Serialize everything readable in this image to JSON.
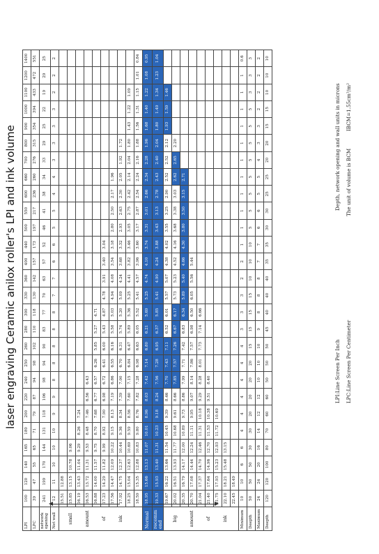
{
  "title": "laser engraving Ceramic anilox roller's LPI and ink volume",
  "labels": {
    "lpi": "LPI",
    "lpc": "LPC",
    "network_opening": "network opening",
    "net_wall": "Net wall",
    "normal": "Normal",
    "recommend": "recomm end",
    "minimum": "Minimum",
    "depth": "Deepth",
    "maximum": "Maximum",
    "small": [
      "small",
      "amount",
      "of",
      "ink"
    ],
    "big": [
      "big",
      "amount",
      "of",
      "ink"
    ]
  },
  "columns": {
    "lpi": [
      "100",
      "120",
      "140",
      "165",
      "180",
      "200",
      "220",
      "240",
      "250",
      "260",
      "280",
      "300",
      "330",
      "360",
      "400",
      "440",
      "500",
      "550",
      "600",
      "660",
      "700",
      "800",
      "900",
      "1000",
      "1100",
      "1200",
      "1400"
    ],
    "lpc": [
      "39",
      "47",
      "55",
      "65",
      "71",
      "79",
      "87",
      "94",
      "98",
      "102",
      "110",
      "118",
      "130",
      "142",
      "157",
      "173",
      "197",
      "217",
      "236",
      "260",
      "276",
      "315",
      "354",
      "394",
      "433",
      "472",
      "551"
    ],
    "network_opening": [
      "241",
      "199",
      "170",
      "144",
      "131",
      "118",
      "106",
      "98",
      "94",
      "90",
      "83",
      "77",
      "70",
      "63",
      "57",
      "52",
      "46",
      "41",
      "38",
      "34",
      "33",
      "29",
      "25",
      "22",
      "19",
      "29",
      "25"
    ],
    "net_wall": [
      "12",
      "11",
      "10",
      "10",
      "10",
      "9",
      "9",
      "8",
      "8",
      "8",
      "8",
      "8",
      "7",
      "7",
      "6",
      "6",
      "5",
      "5",
      "4",
      "4",
      "3",
      "3",
      "3",
      "3",
      "2",
      "2",
      "2"
    ]
  },
  "small_rows": [
    [
      "15.51",
      "12.88",
      "",
      "",
      "",
      "",
      "",
      "",
      "",
      "",
      "",
      "",
      "",
      "",
      "",
      "",
      "",
      "",
      "",
      "",
      "",
      "",
      "",
      "",
      "",
      "",
      ""
    ],
    [
      "15.85",
      "13.15",
      "10.78",
      "9.06",
      "",
      "",
      "",
      "",
      "",
      "",
      "",
      "",
      "",
      "",
      "",
      "",
      "",
      "",
      "",
      "",
      "",
      "",
      "",
      "",
      "",
      "",
      ""
    ],
    [
      "16.19",
      "13.43",
      "11.04",
      "9.29",
      "8.26",
      "7.24",
      "",
      "",
      "",
      "",
      "",
      "",
      "",
      "",
      "",
      "",
      "",
      "",
      "",
      "",
      "",
      "",
      "",
      "",
      "",
      "",
      ""
    ],
    [
      "16.53",
      "13.72",
      "11.31",
      "9.53",
      "8.48",
      "7.46",
      "6.56",
      "6.43",
      "",
      "",
      "",
      "",
      "",
      "",
      "",
      "",
      "",
      "",
      "",
      "",
      "",
      "",
      "",
      "",
      "",
      "",
      ""
    ],
    [
      "16.88",
      "14.00",
      "11.57",
      "9.75",
      "8.70",
      "7.68",
      "6.77",
      "6.57",
      "6.26",
      "5.85",
      "5.27",
      "4.71",
      "",
      "",
      "",
      "",
      "",
      "",
      "",
      "",
      "",
      "",
      "",
      "",
      "",
      "",
      ""
    ],
    [
      "17.23",
      "14.29",
      "11.82",
      "9.99",
      "8.92",
      "7.90",
      "6.98",
      "6.72",
      "6.41",
      "6.00",
      "5.43",
      "4.87",
      "4.78",
      "3.91",
      "3.40",
      "3.04",
      "",
      "",
      "",
      "",
      "",
      "",
      "",
      "",
      "",
      "",
      ""
    ],
    [
      "17.56",
      "14.47",
      "12.09",
      "10.22",
      "9.15",
      "8.13",
      "7.19",
      "6.86",
      "6.55",
      "6.16",
      "5.58",
      "5.03",
      "4.94",
      "4.08",
      "3.54",
      "3.18",
      "2.80",
      "2.50",
      "2.17",
      "1.96",
      "",
      "",
      "",
      "",
      "",
      "",
      ""
    ],
    [
      "17.92",
      "14.75",
      "12.37",
      "10.44",
      "9.36",
      "8.34",
      "7.39",
      "7.00",
      "6.70",
      "6.31",
      "5.74",
      "5.20",
      "5.09",
      "4.24",
      "3.68",
      "3.32",
      "2.93",
      "2.63",
      "2.30",
      "2.05",
      "1.92",
      "1.72",
      "",
      "",
      "",
      "",
      ""
    ],
    [
      "18.25",
      "15.04",
      "12.63",
      "10.69",
      "9.59",
      "8.56",
      "7.60",
      "7.15",
      "6.84",
      "6.47",
      "5.89",
      "5.36",
      "5.25",
      "4.41",
      "3.82",
      "3.46",
      "3.05",
      "2.75",
      "2.42",
      "2.14",
      "2.04",
      "1.80",
      "1.43",
      "1.22",
      "1.09",
      "",
      ""
    ],
    [
      "18.59",
      "15.35",
      "12.88",
      "10.83",
      "9.80",
      "8.76",
      "7.82",
      "7.28",
      "6.98",
      "6.63",
      "6.05",
      "5.52",
      "5.41",
      "4.57",
      "3.96",
      "3.60",
      "3.17",
      "2.87",
      "2.54",
      "2.24",
      "2.16",
      "1.88",
      "1.56",
      "1.31",
      "1.15",
      "1.01",
      "0.84"
    ]
  ],
  "normal_row": [
    "18.95",
    "15.66",
    "13.13",
    "11.07",
    "10.01",
    "8.96",
    "8.03",
    "7.42",
    "7.14",
    "6.80",
    "6.21",
    "5.69",
    "5.25",
    "4.74",
    "4.10",
    "3.74",
    "3.31",
    "3.01",
    "2.66",
    "2.34",
    "2.28",
    "1.96",
    "1.68",
    "1.40",
    "1.22",
    "1.08",
    "0.95"
  ],
  "recommend_row": [
    "19.33",
    "15.93",
    "13.40",
    "11.31",
    "10.23",
    "9.18",
    "8.24",
    "7.56",
    "7.28",
    "6.95",
    "6.37",
    "5.85",
    "5.41",
    "4.90",
    "4.24",
    "3.88",
    "3.43",
    "3.13",
    "2.78",
    "2.43",
    "2.40",
    "2.04",
    "1.80",
    "1.49",
    "1.34",
    "1.23",
    "1.04"
  ],
  "big_rows": [
    [
      "19.67",
      "16.22",
      "13.66",
      "11.54",
      "10.45",
      "9.39",
      "8.46",
      "7.70",
      "7.43",
      "7.11",
      "6.52",
      "6.01",
      "5.57",
      "5.07",
      "4.38",
      "4.02",
      "3.55",
      "3.25",
      "2.90",
      "2.52",
      "2.52",
      "2.12",
      "1.93",
      "1.59",
      "1.46",
      "",
      ""
    ],
    [
      "20.02",
      "16.51",
      "13.93",
      "11.77",
      "10.68",
      "9.61",
      "8.66",
      "7.85",
      "7.57",
      "7.26",
      "6.67",
      "6.17",
      "5.73",
      "5.23",
      "4.52",
      "4.16",
      "3.68",
      "3.38",
      "3.03",
      "2.62",
      "2.65",
      "2.20",
      "",
      "",
      "",
      "",
      ""
    ],
    [
      "20.35",
      "16.79",
      "14.17",
      "12.00",
      "10.89",
      "9.73",
      "8.86",
      "7.99",
      "7.71",
      "7.42",
      "6.83",
      "6.34",
      "5.89",
      "5.40",
      "4.66",
      "4.30",
      "3.80",
      "3.50",
      "3.15",
      "2.71",
      "",
      "",
      "",
      "",
      "",
      "",
      ""
    ],
    [
      "20.70",
      "17.08",
      "14.44",
      "12.24",
      "11.11",
      "9.95",
      "9.07",
      "8.14",
      "7.86",
      "7.57",
      "6.98",
      "6.50",
      "6.05",
      "5.56",
      "5.44",
      "",
      "",
      "",
      "",
      "",
      "",
      "",
      "",
      "",
      "",
      "",
      ""
    ],
    [
      "21.04",
      "17.37",
      "14.70",
      "12.46",
      "11.31",
      "10.18",
      "9.29",
      "8.28",
      "8.01",
      "7.73",
      "7.14",
      "6.66",
      "",
      "",
      "",
      "",
      "",
      "",
      "",
      "",
      "",
      "",
      "",
      "",
      "",
      "",
      ""
    ],
    [
      "21.40",
      "17.64",
      "14.96",
      "12.70",
      "11.53",
      "10.38",
      "9.51",
      "8.40",
      "",
      "",
      "",
      "",
      "",
      "",
      "",
      "",
      "",
      "",
      "",
      "",
      "",
      "",
      "",
      "",
      "",
      "",
      ""
    ],
    [
      "21.75",
      "17.93",
      "15.23",
      "12.93",
      "11.72",
      "10.69",
      "",
      "",
      "",
      "",
      "",
      "",
      "",
      "",
      "",
      "",
      "",
      "",
      "",
      "",
      "",
      "",
      "",
      "",
      "",
      "",
      ""
    ],
    [
      "22.10",
      "18.21",
      "15.48",
      "13.15",
      "",
      "",
      "",
      "",
      "",
      "",
      "",
      "",
      "",
      "",
      "",
      "",
      "",
      "",
      "",
      "",
      "",
      "",
      "",
      "",
      "",
      "",
      ""
    ],
    [
      "22.45",
      "18.49",
      "",
      "",
      "",
      "",
      "",
      "",
      "",
      "",
      "",
      "",
      "",
      "",
      "",
      "",
      "",
      "",
      "",
      "",
      "",
      "",
      "",
      "",
      "",
      "",
      ""
    ]
  ],
  "minimum_row": [
    "10",
    "10",
    "6",
    "6",
    "4",
    "4",
    "4",
    "4",
    "4",
    "4",
    "3",
    "3",
    "3",
    "2",
    "2",
    "1",
    "1",
    "1",
    "1",
    "1",
    "1",
    "1",
    "1",
    "1",
    "1",
    "1",
    "0.6"
  ],
  "min_depth_row": [
    "50",
    "50",
    "50",
    "30",
    "30",
    "20",
    "20",
    "20",
    "20",
    "15",
    "15",
    "15",
    "15",
    "10",
    "10",
    "10",
    "5",
    "5",
    "5",
    "5",
    "5",
    "5",
    "5",
    "5",
    "3",
    "3",
    "3"
  ],
  "maximum_row": [
    "24",
    "24",
    "20",
    "16",
    "14",
    "12",
    "12",
    "10",
    "10",
    "10",
    "9",
    "8",
    "8",
    "8",
    "7",
    "7",
    "6",
    "6",
    "5",
    "5",
    "4",
    "3",
    "3",
    "2",
    "2",
    "2",
    "2"
  ],
  "max_depth_row": [
    "120",
    "120",
    "100",
    "80",
    "70",
    "60",
    "60",
    "50",
    "50",
    "50",
    "45",
    "40",
    "40",
    "40",
    "35",
    "35",
    "30",
    "30",
    "25",
    "25",
    "20",
    "20",
    "15",
    "15",
    "10",
    "10",
    "10"
  ],
  "highlight": {
    "blue": "#2b66b8",
    "normal_from": 9,
    "recommend_from": 15,
    "big_row0_from": 20,
    "big_row1_from": 18,
    "big_row2_from": 16,
    "big_row0_to": 24,
    "big_row1_to": 21,
    "big_row2_to": 19,
    "big_row1_first": 7,
    "big_row2_first": 12,
    "big_row0_first": 8
  },
  "footer": {
    "lpi_def": "LPI:Line Screen Per Inch",
    "lpc_def": "LPC:Line Screen Per Centimeter",
    "depth_def": "Depth, network opening  and wall units in microns",
    "volume_def": "The unit of volume is BCM",
    "bcm_def": "IBCM=1.55cm³/m²"
  }
}
